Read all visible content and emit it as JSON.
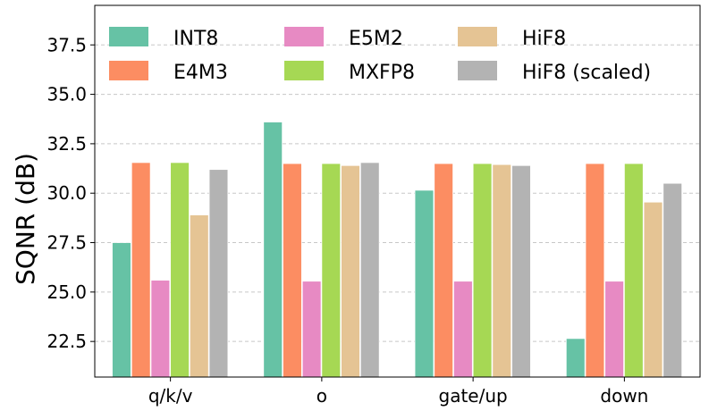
{
  "chart_data": {
    "type": "bar",
    "title": "",
    "xlabel": "",
    "ylabel": "SQNR (dB)",
    "ylim": [
      20.7,
      39.5
    ],
    "yticks": [
      22.5,
      25.0,
      27.5,
      30.0,
      32.5,
      35.0,
      37.5
    ],
    "ytick_labels": [
      "22.5",
      "25.0",
      "27.5",
      "30.0",
      "32.5",
      "35.0",
      "37.5"
    ],
    "grid": true,
    "legend_position": "top",
    "categories": [
      "q/k/v",
      "o",
      "gate/up",
      "down"
    ],
    "series": [
      {
        "name": "INT8",
        "color": "#66c2a5",
        "values": [
          27.5,
          33.6,
          30.15,
          22.65
        ]
      },
      {
        "name": "E4M3",
        "color": "#fc8d62",
        "values": [
          31.55,
          31.5,
          31.5,
          31.5
        ]
      },
      {
        "name": "E5M2",
        "color": "#e78ac3",
        "values": [
          25.6,
          25.55,
          25.55,
          25.55
        ]
      },
      {
        "name": "MXFP8",
        "color": "#a6d854",
        "values": [
          31.55,
          31.5,
          31.5,
          31.5
        ]
      },
      {
        "name": "HiF8",
        "color": "#e5c494",
        "values": [
          28.9,
          31.4,
          31.45,
          29.55
        ]
      },
      {
        "name": "HiF8 (scaled)",
        "color": "#b3b3b3",
        "values": [
          31.2,
          31.55,
          31.4,
          30.5
        ]
      }
    ]
  }
}
